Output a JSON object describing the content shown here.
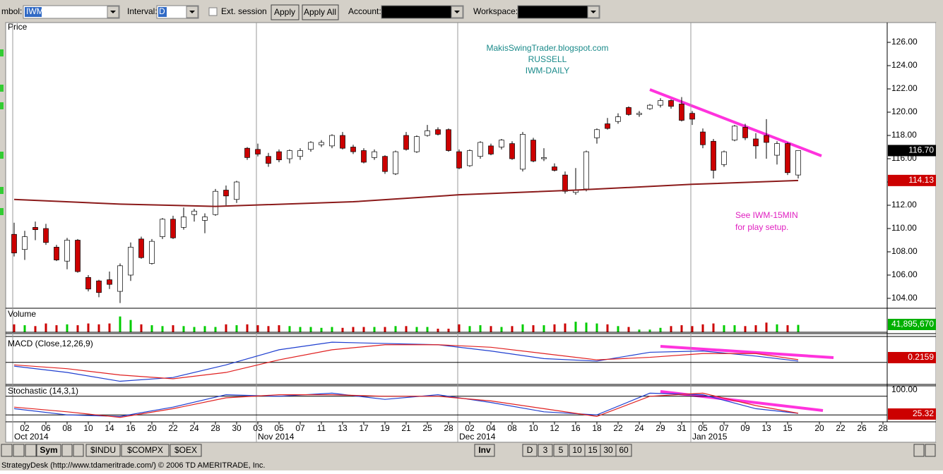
{
  "toolbar": {
    "symbol_label": "mbol:",
    "symbol": "IWM",
    "interval_label": "Interval:",
    "interval": "D",
    "ext_session": "Ext. session",
    "apply": "Apply",
    "apply_all": "Apply All",
    "account_label": "Account:",
    "workspace_label": "Workspace:"
  },
  "chart_data": [
    {
      "type": "candlestick",
      "title": "Price",
      "annotations": [
        "MakisSwingTrader.blogspot.com",
        "RUSSELL",
        "IWM-DAILY"
      ],
      "note": [
        "See IWM-15MIN",
        "for play setup."
      ],
      "x": [
        "2014-10-01",
        "2014-10-02",
        "2014-10-03",
        "2014-10-06",
        "2014-10-07",
        "2014-10-08",
        "2014-10-09",
        "2014-10-10",
        "2014-10-13",
        "2014-10-14",
        "2014-10-15",
        "2014-10-16",
        "2014-10-17",
        "2014-10-20",
        "2014-10-21",
        "2014-10-22",
        "2014-10-23",
        "2014-10-24",
        "2014-10-27",
        "2014-10-28",
        "2014-10-29",
        "2014-10-30",
        "2014-10-31",
        "2014-11-03",
        "2014-11-04",
        "2014-11-05",
        "2014-11-06",
        "2014-11-07",
        "2014-11-10",
        "2014-11-11",
        "2014-11-12",
        "2014-11-13",
        "2014-11-14",
        "2014-11-17",
        "2014-11-18",
        "2014-11-19",
        "2014-11-20",
        "2014-11-21",
        "2014-11-24",
        "2014-11-25",
        "2014-11-26",
        "2014-11-28",
        "2014-12-01",
        "2014-12-02",
        "2014-12-03",
        "2014-12-04",
        "2014-12-05",
        "2014-12-08",
        "2014-12-09",
        "2014-12-10",
        "2014-12-11",
        "2014-12-12",
        "2014-12-15",
        "2014-12-16",
        "2014-12-17",
        "2014-12-18",
        "2014-12-19",
        "2014-12-22",
        "2014-12-23",
        "2014-12-24",
        "2014-12-26",
        "2014-12-29",
        "2014-12-30",
        "2014-12-31",
        "2015-01-02",
        "2015-01-05",
        "2015-01-06",
        "2015-01-07",
        "2015-01-08",
        "2015-01-09",
        "2015-01-12",
        "2015-01-13",
        "2015-01-14",
        "2015-01-15",
        "2015-01-16"
      ],
      "open": [
        109.5,
        108.2,
        110.1,
        110.0,
        108.4,
        107.2,
        109.0,
        105.8,
        105.5,
        105.6,
        104.6,
        106.0,
        109.1,
        107.0,
        109.3,
        110.8,
        110.1,
        111.2,
        110.7,
        111.2,
        113.3,
        112.5,
        116.9,
        116.8,
        116.2,
        116.6,
        116.0,
        116.2,
        116.8,
        117.2,
        117.1,
        118.0,
        117.0,
        116.7,
        116.1,
        116.2,
        114.7,
        118.0,
        116.6,
        118.0,
        118.5,
        118.5,
        116.6,
        115.4,
        116.2,
        117.1,
        117.0,
        117.3,
        115.1,
        117.6,
        116.0,
        115.3,
        114.6,
        113.1,
        113.4,
        117.8,
        119.0,
        119.2,
        120.4,
        119.8,
        120.3,
        120.6,
        121.0,
        120.7,
        119.9,
        118.3,
        117.5,
        115.5,
        117.6,
        118.7,
        117.7,
        118.0,
        116.3,
        117.3,
        114.6
      ],
      "high": [
        110.5,
        109.8,
        110.6,
        110.4,
        108.6,
        109.2,
        109.1,
        106.0,
        105.6,
        106.3,
        107.0,
        108.8,
        109.3,
        109.1,
        110.9,
        111.1,
        111.8,
        111.7,
        111.3,
        113.4,
        113.7,
        114.1,
        117.0,
        117.3,
        116.5,
        116.8,
        116.8,
        116.9,
        117.5,
        117.6,
        118.1,
        118.3,
        117.2,
        116.9,
        116.8,
        116.3,
        116.7,
        118.3,
        118.0,
        118.9,
        118.7,
        118.6,
        116.8,
        116.8,
        117.5,
        117.3,
        117.7,
        117.5,
        118.3,
        117.8,
        116.9,
        115.6,
        114.9,
        115.2,
        116.7,
        118.6,
        119.5,
        119.9,
        120.5,
        120.1,
        120.7,
        121.2,
        121.1,
        121.3,
        120.1,
        118.6,
        117.7,
        116.7,
        118.9,
        119.0,
        118.2,
        119.4,
        117.5,
        117.4,
        116.7
      ],
      "low": [
        107.6,
        107.3,
        109.0,
        108.6,
        107.2,
        106.5,
        106.2,
        104.6,
        104.1,
        104.8,
        103.6,
        105.5,
        107.4,
        106.9,
        109.1,
        109.1,
        109.9,
        110.6,
        109.6,
        111.1,
        112.0,
        112.2,
        115.9,
        116.2,
        115.3,
        115.7,
        115.6,
        115.9,
        116.6,
        117.0,
        116.9,
        116.8,
        116.4,
        115.6,
        115.9,
        114.7,
        114.6,
        116.7,
        116.5,
        117.9,
        118.0,
        116.6,
        115.1,
        115.3,
        116.0,
        116.3,
        116.8,
        115.9,
        114.9,
        115.7,
        115.8,
        114.9,
        113.0,
        112.9,
        113.2,
        117.3,
        118.5,
        119.0,
        119.7,
        119.6,
        120.2,
        120.4,
        120.3,
        119.2,
        118.9,
        116.9,
        114.3,
        115.3,
        117.5,
        117.6,
        116.0,
        116.0,
        115.5,
        114.6,
        114.3
      ],
      "close": [
        107.9,
        109.3,
        109.9,
        108.8,
        107.3,
        109.0,
        106.3,
        104.8,
        104.5,
        105.2,
        106.8,
        108.4,
        107.5,
        108.9,
        110.8,
        109.2,
        111.0,
        111.5,
        111.0,
        113.2,
        112.8,
        114.0,
        116.1,
        116.4,
        115.6,
        115.9,
        116.7,
        116.7,
        117.4,
        117.4,
        118.0,
        116.9,
        116.6,
        115.7,
        116.6,
        114.9,
        116.6,
        116.8,
        117.9,
        118.4,
        118.1,
        116.7,
        115.2,
        116.7,
        117.4,
        116.4,
        117.6,
        116.0,
        118.1,
        115.8,
        116.1,
        115.0,
        113.2,
        113.3,
        116.6,
        118.5,
        118.6,
        119.6,
        119.8,
        119.9,
        120.6,
        121.0,
        120.5,
        119.3,
        119.4,
        117.2,
        115.0,
        116.6,
        118.8,
        117.8,
        117.1,
        117.4,
        117.3,
        114.8,
        116.7
      ],
      "up_color": "#ffffff",
      "down_color": "#cc0000",
      "ma": {
        "color": "#8b1a1a",
        "x": [
          "2014-10-01",
          "2014-10-15",
          "2014-10-28",
          "2014-11-14",
          "2014-12-01",
          "2014-12-16",
          "2015-01-02",
          "2015-01-16"
        ],
        "values": [
          112.5,
          112.1,
          111.9,
          112.3,
          112.9,
          113.3,
          113.8,
          114.13
        ]
      },
      "ma_label": {
        "value": 114.13,
        "label": "114.13"
      },
      "last_label": {
        "value": 116.7,
        "label": "116.70"
      },
      "ylim": [
        103.15,
        127.7
      ],
      "yticks": [
        {
          "value": 104,
          "label": "104.00"
        },
        {
          "value": 106,
          "label": "106.00"
        },
        {
          "value": 108,
          "label": "108.00"
        },
        {
          "value": 110,
          "label": "110.00"
        },
        {
          "value": 112,
          "label": "112.00"
        },
        {
          "value": 114,
          "label": "114.00"
        },
        {
          "value": 116,
          "label": "116.00"
        },
        {
          "value": 118,
          "label": "118.00"
        },
        {
          "value": 120,
          "label": "120.00"
        },
        {
          "value": 122,
          "label": "122.00"
        },
        {
          "value": 124,
          "label": "124.00"
        },
        {
          "value": 126,
          "label": "126.00"
        }
      ],
      "xticks": [
        {
          "value": "2014-10-02",
          "label": "02"
        },
        {
          "value": "2014-10-06",
          "label": "06"
        },
        {
          "value": "2014-10-08",
          "label": "08"
        },
        {
          "value": "2014-10-10",
          "label": "10"
        },
        {
          "value": "2014-10-14",
          "label": "14"
        },
        {
          "value": "2014-10-16",
          "label": "16"
        },
        {
          "value": "2014-10-20",
          "label": "20"
        },
        {
          "value": "2014-10-22",
          "label": "22"
        },
        {
          "value": "2014-10-24",
          "label": "24"
        },
        {
          "value": "2014-10-28",
          "label": "28"
        },
        {
          "value": "2014-10-30",
          "label": "30"
        },
        {
          "value": "2014-11-03",
          "label": "03"
        },
        {
          "value": "2014-11-05",
          "label": "05"
        },
        {
          "value": "2014-11-07",
          "label": "07"
        },
        {
          "value": "2014-11-11",
          "label": "11"
        },
        {
          "value": "2014-11-13",
          "label": "13"
        },
        {
          "value": "2014-11-17",
          "label": "17"
        },
        {
          "value": "2014-11-19",
          "label": "19"
        },
        {
          "value": "2014-11-21",
          "label": "21"
        },
        {
          "value": "2014-11-25",
          "label": "25"
        },
        {
          "value": "2014-11-28",
          "label": "28"
        },
        {
          "value": "2014-12-02",
          "label": "02"
        },
        {
          "value": "2014-12-04",
          "label": "04"
        },
        {
          "value": "2014-12-08",
          "label": "08"
        },
        {
          "value": "2014-12-10",
          "label": "10"
        },
        {
          "value": "2014-12-12",
          "label": "12"
        },
        {
          "value": "2014-12-16",
          "label": "16"
        },
        {
          "value": "2014-12-18",
          "label": "18"
        },
        {
          "value": "2014-12-22",
          "label": "22"
        },
        {
          "value": "2014-12-24",
          "label": "24"
        },
        {
          "value": "2014-12-29",
          "label": "29"
        },
        {
          "value": "2014-12-31",
          "label": "31"
        },
        {
          "value": "2015-01-05",
          "label": "05"
        },
        {
          "value": "2015-01-07",
          "label": "07"
        },
        {
          "value": "2015-01-09",
          "label": "09"
        },
        {
          "value": "2015-01-13",
          "label": "13"
        },
        {
          "value": "2015-01-15",
          "label": "15"
        },
        {
          "value": "2015-01-20",
          "label": "20"
        },
        {
          "value": "2015-01-22",
          "label": "22"
        },
        {
          "value": "2015-01-26",
          "label": "26"
        },
        {
          "value": "2015-01-28",
          "label": "28"
        }
      ],
      "month_ticks": [
        {
          "value": "2014-10-01",
          "label": "Oct 2014"
        },
        {
          "value": "2014-11-03",
          "label": "Nov 2014"
        },
        {
          "value": "2014-12-01",
          "label": "Dec 2014"
        },
        {
          "value": "2015-01-02",
          "label": "Jan 2015"
        }
      ]
    },
    {
      "type": "bar",
      "title": "Volume",
      "values": [
        45000000,
        40000000,
        35000000,
        50000000,
        40000000,
        45000000,
        40000000,
        50000000,
        45000000,
        50000000,
        90000000,
        70000000,
        45000000,
        40000000,
        35000000,
        40000000,
        35000000,
        30000000,
        35000000,
        30000000,
        45000000,
        40000000,
        45000000,
        40000000,
        35000000,
        40000000,
        35000000,
        30000000,
        30000000,
        25000000,
        30000000,
        25000000,
        30000000,
        30000000,
        30000000,
        30000000,
        35000000,
        35000000,
        30000000,
        30000000,
        20000000,
        20000000,
        45000000,
        35000000,
        40000000,
        35000000,
        30000000,
        35000000,
        45000000,
        40000000,
        40000000,
        45000000,
        50000000,
        60000000,
        55000000,
        50000000,
        45000000,
        35000000,
        30000000,
        15000000,
        15000000,
        25000000,
        35000000,
        40000000,
        35000000,
        45000000,
        50000000,
        40000000,
        40000000,
        35000000,
        40000000,
        55000000,
        45000000,
        40000000,
        41895670
      ],
      "up_color": "#00cc00",
      "down_color": "#cc0000",
      "ylim": [
        0,
        125000000
      ],
      "last_label": {
        "value": 41895670,
        "label": "41,895,670"
      }
    },
    {
      "type": "line",
      "title": "MACD (Close,12,26,9)",
      "x": [
        "2014-10-01",
        "2014-10-08",
        "2014-10-15",
        "2014-10-22",
        "2014-10-29",
        "2014-11-05",
        "2014-11-12",
        "2014-11-19",
        "2014-11-26",
        "2014-12-04",
        "2014-12-11",
        "2014-12-18",
        "2014-12-26",
        "2015-01-05",
        "2015-01-12",
        "2015-01-16"
      ],
      "series": [
        {
          "color": "#1f3fd0",
          "values": [
            -0.3,
            -0.8,
            -1.5,
            -1.2,
            -0.2,
            1.0,
            1.6,
            1.5,
            1.4,
            0.9,
            0.3,
            0.1,
            0.8,
            0.9,
            0.5,
            0.1
          ]
        },
        {
          "color": "#e02020",
          "values": [
            -0.2,
            -0.5,
            -1.0,
            -1.3,
            -0.8,
            0.2,
            1.0,
            1.4,
            1.4,
            1.2,
            0.7,
            0.2,
            0.4,
            0.7,
            0.7,
            0.2159
          ]
        }
      ],
      "ylim": [
        -1.75,
        2
      ],
      "last_label": {
        "value": 0.2159,
        "label": "0.2159"
      }
    },
    {
      "type": "line",
      "title": "Stochastic (14,3,1)",
      "x": [
        "2014-10-01",
        "2014-10-08",
        "2014-10-15",
        "2014-10-22",
        "2014-10-29",
        "2014-11-05",
        "2014-11-12",
        "2014-11-19",
        "2014-11-26",
        "2014-12-04",
        "2014-12-11",
        "2014-12-18",
        "2014-12-26",
        "2015-01-05",
        "2015-01-12",
        "2015-01-16"
      ],
      "series": [
        {
          "color": "#1f3fd0",
          "values": [
            40,
            20,
            15,
            45,
            85,
            80,
            90,
            70,
            85,
            60,
            30,
            20,
            90,
            85,
            40,
            25
          ]
        },
        {
          "color": "#e02020",
          "values": [
            45,
            30,
            12,
            40,
            75,
            85,
            85,
            80,
            80,
            65,
            40,
            15,
            80,
            90,
            50,
            25.32
          ]
        }
      ],
      "ylim": [
        0,
        100
      ],
      "yticks": [
        {
          "value": 100,
          "label": "100.00"
        }
      ],
      "levels": [
        80,
        20
      ],
      "last_label": {
        "value": 25.32,
        "label": "25.32"
      }
    }
  ],
  "tabs": {
    "sym": "Sym",
    "symbols": [
      "$INDU",
      "$COMPX",
      "$OEX"
    ],
    "inv": "Inv",
    "intervals": [
      "D",
      "3",
      "5",
      "10",
      "15",
      "30",
      "60"
    ]
  },
  "status": "StrategyDesk (http://www.tdameritrade.com/) © 2006 TD AMERITRADE, Inc."
}
